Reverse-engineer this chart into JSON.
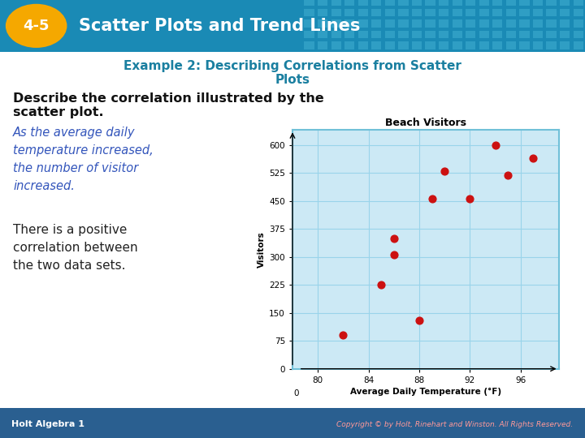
{
  "header_text": "4-5 Scatter Plots and Trend Lines",
  "header_bg": "#1a8ab5",
  "header_oval_bg": "#F5A800",
  "header_oval_text": "4-5",
  "header_grid_color": "#4ab8d8",
  "example_title_line1": "Example 2: Describing Correlations from Scatter",
  "example_title_line2": "Plots",
  "example_title_color": "#1a7fa0",
  "body_bg": "#ffffff",
  "question_line1": "Describe the correlation illustrated by the",
  "question_line2": "scatter plot.",
  "question_color": "#111111",
  "italic_answer": "As the average daily\ntemperature increased,\nthe number of visitor\nincreased.",
  "italic_color": "#3355bb",
  "plain_answer": "There is a positive\ncorrelation between\nthe two data sets.",
  "plain_color": "#222222",
  "footer_bg": "#2a5f90",
  "footer_left": "Holt Algebra 1",
  "footer_right": "Copyright © by Holt, Rinehart and Winston. All Rights Reserved.",
  "footer_color": "#ffffff",
  "chart_title": "Beach Visitors",
  "chart_xlabel": "Average Daily Temperature (°F)",
  "chart_ylabel": "Visitors",
  "chart_bg": "#cce9f5",
  "chart_border": "#70c0d8",
  "chart_grid_color": "#99d4ea",
  "dot_color": "#cc1111",
  "scatter_x": [
    82,
    85,
    86,
    86,
    88,
    89,
    90,
    92,
    94,
    95,
    97
  ],
  "scatter_y": [
    90,
    225,
    350,
    305,
    130,
    455,
    530,
    455,
    600,
    520,
    565
  ],
  "x_ticks": [
    80,
    84,
    88,
    92,
    96
  ],
  "y_ticks": [
    0,
    75,
    150,
    225,
    300,
    375,
    450,
    525,
    600
  ],
  "xlim": [
    78,
    99
  ],
  "ylim": [
    0,
    640
  ]
}
